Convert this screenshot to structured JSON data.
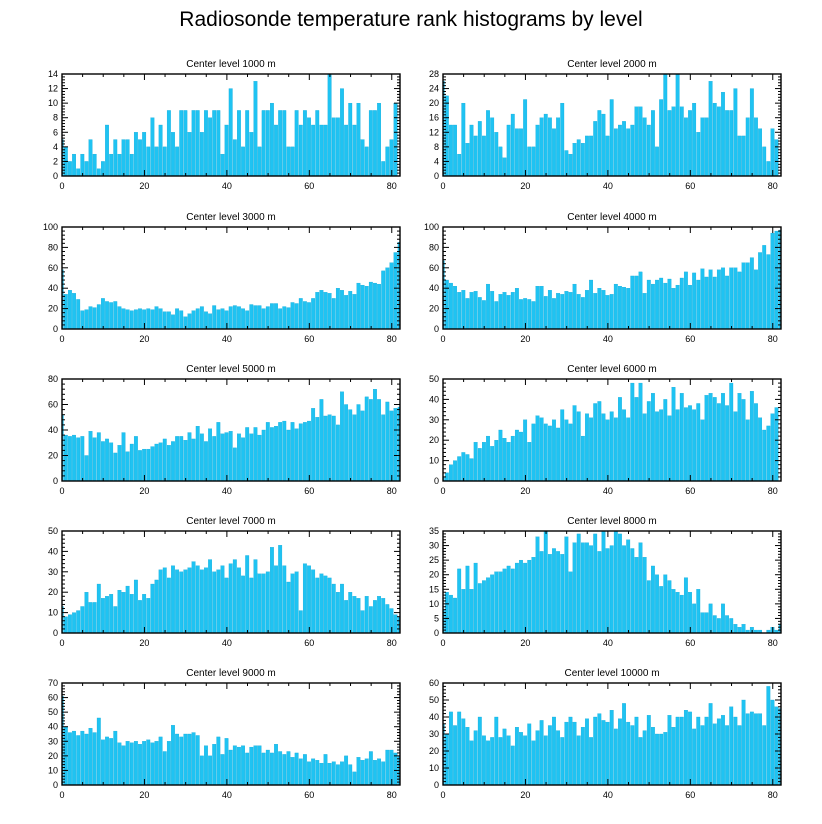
{
  "title": "Radiosonde temperature rank histograms by level",
  "colors": {
    "bar": "#1fc3f2",
    "bar_edge": "#0aa6d6",
    "frame": "#000000"
  },
  "chart_data": [
    {
      "type": "bar",
      "title": "Center level 1000 m",
      "xlim": [
        0,
        82
      ],
      "ylim": [
        0,
        14
      ],
      "xticks": [
        0,
        20,
        40,
        60,
        80
      ],
      "yticks": [
        0,
        2,
        4,
        6,
        8,
        10,
        12,
        14
      ],
      "values": [
        5,
        4,
        2,
        3,
        1,
        3,
        2,
        5,
        3,
        1,
        2,
        7,
        3,
        5,
        3,
        5,
        5,
        3,
        6,
        5,
        6,
        4,
        8,
        4,
        7,
        4,
        9,
        6,
        4,
        9,
        9,
        6,
        9,
        9,
        6,
        9,
        8,
        9,
        9,
        3,
        7,
        12,
        5,
        9,
        4,
        9,
        6,
        13,
        4,
        9,
        9,
        10,
        7,
        9,
        9,
        4,
        4,
        9,
        7,
        9,
        8,
        7,
        9,
        7,
        7,
        14,
        8,
        8,
        12,
        7,
        10,
        7,
        10,
        5,
        4,
        9,
        9,
        10,
        2,
        4,
        5,
        10
      ]
    },
    {
      "type": "bar",
      "title": "Center level 2000 m",
      "xlim": [
        0,
        82
      ],
      "ylim": [
        0,
        28
      ],
      "xticks": [
        0,
        20,
        40,
        60,
        80
      ],
      "yticks": [
        0,
        4,
        8,
        12,
        16,
        20,
        24,
        28
      ],
      "values": [
        26,
        22,
        14,
        14,
        6,
        20,
        9,
        14,
        11,
        15,
        11,
        18,
        16,
        12,
        8,
        5,
        14,
        17,
        13,
        13,
        21,
        8,
        8,
        14,
        16,
        17,
        16,
        13,
        16,
        20,
        7,
        6,
        9,
        10,
        9,
        11,
        11,
        15,
        18,
        17,
        11,
        21,
        13,
        14,
        15,
        13,
        14,
        19,
        19,
        16,
        14,
        18,
        8,
        21,
        28,
        18,
        19,
        28,
        19,
        16,
        18,
        20,
        12,
        16,
        16,
        26,
        20,
        19,
        23,
        18,
        18,
        24,
        11,
        11,
        16,
        24,
        16,
        13,
        8,
        4,
        13,
        10
      ]
    },
    {
      "type": "bar",
      "title": "Center level 3000 m",
      "xlim": [
        0,
        82
      ],
      "ylim": [
        0,
        100
      ],
      "xticks": [
        0,
        20,
        40,
        60,
        80
      ],
      "yticks": [
        0,
        20,
        40,
        60,
        80,
        100
      ],
      "values": [
        58,
        34,
        38,
        35,
        29,
        18,
        19,
        22,
        21,
        24,
        30,
        27,
        26,
        27,
        22,
        20,
        19,
        18,
        19,
        20,
        19,
        20,
        19,
        22,
        20,
        17,
        17,
        14,
        20,
        18,
        12,
        15,
        18,
        20,
        22,
        17,
        15,
        23,
        19,
        20,
        18,
        22,
        23,
        22,
        20,
        18,
        24,
        23,
        23,
        20,
        22,
        25,
        25,
        20,
        22,
        21,
        26,
        25,
        30,
        27,
        26,
        30,
        36,
        38,
        36,
        35,
        30,
        40,
        38,
        33,
        37,
        34,
        45,
        43,
        42,
        46,
        45,
        44,
        57,
        60,
        65,
        75,
        85
      ]
    },
    {
      "type": "bar",
      "title": "Center level 4000 m",
      "xlim": [
        0,
        82
      ],
      "ylim": [
        0,
        100
      ],
      "xticks": [
        0,
        20,
        40,
        60,
        80
      ],
      "yticks": [
        0,
        20,
        40,
        60,
        80,
        100
      ],
      "values": [
        67,
        48,
        45,
        42,
        36,
        38,
        30,
        36,
        37,
        31,
        28,
        44,
        37,
        27,
        34,
        36,
        33,
        36,
        40,
        29,
        30,
        29,
        27,
        42,
        42,
        32,
        38,
        30,
        35,
        34,
        37,
        36,
        44,
        34,
        31,
        38,
        48,
        35,
        40,
        38,
        33,
        34,
        44,
        42,
        41,
        40,
        52,
        52,
        56,
        35,
        48,
        44,
        48,
        50,
        45,
        49,
        40,
        43,
        50,
        56,
        43,
        55,
        48,
        59,
        51,
        58,
        51,
        58,
        60,
        52,
        60,
        60,
        56,
        65,
        65,
        70,
        58,
        75,
        82,
        73,
        94,
        96,
        97
      ]
    },
    {
      "type": "bar",
      "title": "Center level 5000 m",
      "xlim": [
        0,
        82
      ],
      "ylim": [
        0,
        80
      ],
      "xticks": [
        0,
        20,
        40,
        60,
        80
      ],
      "yticks": [
        0,
        20,
        40,
        60,
        80
      ],
      "values": [
        52,
        36,
        35,
        36,
        34,
        35,
        20,
        39,
        34,
        38,
        31,
        33,
        30,
        22,
        28,
        38,
        23,
        29,
        35,
        24,
        25,
        25,
        27,
        29,
        30,
        33,
        28,
        31,
        35,
        35,
        32,
        38,
        33,
        43,
        37,
        31,
        41,
        35,
        46,
        37,
        38,
        39,
        26,
        37,
        34,
        42,
        37,
        42,
        36,
        40,
        46,
        42,
        43,
        46,
        47,
        40,
        46,
        41,
        45,
        46,
        47,
        57,
        50,
        64,
        51,
        52,
        51,
        44,
        70,
        60,
        56,
        52,
        60,
        55,
        66,
        64,
        72,
        64,
        52,
        62,
        55,
        57,
        58
      ]
    },
    {
      "type": "bar",
      "title": "Center level 6000 m",
      "xlim": [
        0,
        82
      ],
      "ylim": [
        0,
        50
      ],
      "xticks": [
        0,
        20,
        40,
        60,
        80
      ],
      "yticks": [
        0,
        10,
        20,
        30,
        40,
        50
      ],
      "values": [
        2,
        4,
        8,
        10,
        12,
        14,
        13,
        11,
        19,
        16,
        19,
        22,
        17,
        20,
        25,
        21,
        19,
        22,
        25,
        24,
        30,
        19,
        28,
        32,
        31,
        28,
        27,
        30,
        26,
        35,
        30,
        28,
        37,
        34,
        22,
        33,
        31,
        38,
        39,
        33,
        30,
        34,
        31,
        41,
        35,
        31,
        48,
        41,
        48,
        33,
        39,
        43,
        34,
        35,
        40,
        32,
        46,
        35,
        43,
        36,
        37,
        35,
        38,
        30,
        42,
        43,
        41,
        38,
        43,
        37,
        48,
        34,
        43,
        40,
        30,
        44,
        38,
        31,
        25,
        27,
        33,
        36
      ]
    },
    {
      "type": "bar",
      "title": "Center level 7000 m",
      "xlim": [
        0,
        82
      ],
      "ylim": [
        0,
        50
      ],
      "xticks": [
        0,
        20,
        40,
        60,
        80
      ],
      "yticks": [
        0,
        10,
        20,
        30,
        40,
        50
      ],
      "values": [
        13,
        8,
        9,
        10,
        11,
        13,
        20,
        15,
        15,
        24,
        17,
        18,
        19,
        13,
        21,
        20,
        23,
        19,
        26,
        16,
        19,
        17,
        24,
        26,
        31,
        32,
        27,
        33,
        31,
        30,
        31,
        32,
        35,
        33,
        31,
        32,
        36,
        30,
        31,
        33,
        27,
        34,
        36,
        32,
        28,
        38,
        27,
        36,
        29,
        29,
        30,
        42,
        33,
        43,
        33,
        25,
        29,
        30,
        11,
        34,
        33,
        31,
        27,
        29,
        28,
        27,
        24,
        20,
        24,
        16,
        20,
        18,
        17,
        11,
        18,
        13,
        16,
        18,
        17,
        14,
        12,
        9,
        8
      ]
    },
    {
      "type": "bar",
      "title": "Center level 8000 m",
      "xlim": [
        0,
        82
      ],
      "ylim": [
        0,
        35
      ],
      "xticks": [
        0,
        20,
        40,
        60,
        80
      ],
      "yticks": [
        0,
        5,
        10,
        15,
        20,
        25,
        30,
        35
      ],
      "values": [
        8,
        14,
        13,
        12,
        22,
        15,
        23,
        15,
        24,
        17,
        18,
        19,
        20,
        21,
        21,
        22,
        23,
        22,
        24,
        25,
        24,
        25,
        26,
        33,
        28,
        35,
        27,
        29,
        28,
        27,
        33,
        21,
        31,
        34,
        31,
        31,
        30,
        34,
        28,
        35,
        29,
        30,
        35,
        34,
        30,
        32,
        29,
        26,
        31,
        26,
        18,
        23,
        20,
        16,
        20,
        18,
        15,
        14,
        13,
        19,
        14,
        10,
        15,
        7,
        7,
        10,
        6,
        5,
        10,
        6,
        5,
        3,
        2,
        3,
        1,
        2,
        1,
        1,
        0,
        1,
        2,
        1,
        3
      ]
    },
    {
      "type": "bar",
      "title": "Center level 9000 m",
      "xlim": [
        0,
        82
      ],
      "ylim": [
        0,
        70
      ],
      "xticks": [
        0,
        20,
        40,
        60,
        80
      ],
      "yticks": [
        0,
        10,
        20,
        30,
        40,
        50,
        60,
        70
      ],
      "values": [
        61,
        40,
        36,
        37,
        34,
        37,
        35,
        39,
        36,
        46,
        31,
        33,
        32,
        37,
        29,
        27,
        30,
        29,
        30,
        28,
        30,
        31,
        29,
        30,
        33,
        23,
        30,
        41,
        35,
        33,
        35,
        35,
        36,
        34,
        20,
        27,
        20,
        28,
        33,
        21,
        32,
        24,
        27,
        26,
        27,
        22,
        26,
        27,
        27,
        22,
        24,
        22,
        28,
        23,
        21,
        23,
        19,
        22,
        18,
        21,
        16,
        18,
        17,
        15,
        21,
        15,
        16,
        14,
        16,
        20,
        14,
        9,
        19,
        17,
        18,
        23,
        17,
        18,
        16,
        24,
        24,
        22,
        20
      ]
    },
    {
      "type": "bar",
      "title": "Center level 10000 m",
      "xlim": [
        0,
        82
      ],
      "ylim": [
        0,
        60
      ],
      "xticks": [
        0,
        20,
        40,
        60,
        80
      ],
      "yticks": [
        0,
        10,
        20,
        30,
        40,
        50,
        60
      ],
      "values": [
        36,
        30,
        43,
        35,
        43,
        39,
        34,
        26,
        32,
        40,
        29,
        26,
        28,
        40,
        28,
        33,
        29,
        23,
        34,
        31,
        29,
        36,
        26,
        32,
        38,
        29,
        35,
        40,
        32,
        28,
        37,
        40,
        37,
        29,
        34,
        39,
        28,
        40,
        42,
        38,
        37,
        44,
        33,
        39,
        48,
        37,
        35,
        40,
        28,
        32,
        41,
        34,
        30,
        30,
        31,
        41,
        34,
        40,
        40,
        44,
        43,
        33,
        40,
        35,
        40,
        48,
        36,
        39,
        41,
        35,
        46,
        40,
        35,
        50,
        42,
        43,
        42,
        42,
        35,
        58,
        50,
        46,
        45
      ]
    }
  ]
}
